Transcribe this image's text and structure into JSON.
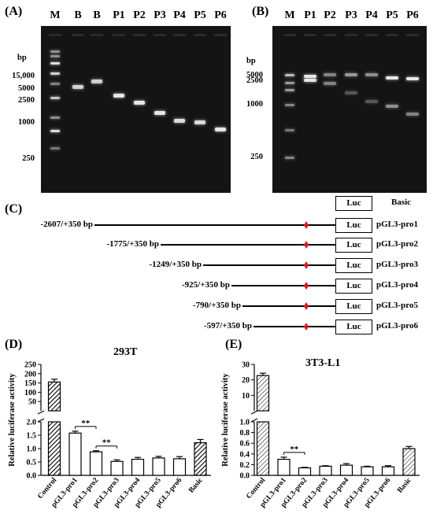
{
  "panelA": {
    "label": "(A)",
    "lanes": [
      "M",
      "B",
      "B",
      "P1",
      "P2",
      "P3",
      "P4",
      "P5",
      "P6"
    ],
    "bp_title": "bp",
    "markers": [
      "15,000",
      "5000",
      "2500",
      "1000",
      "250"
    ]
  },
  "panelB": {
    "label": "(B)",
    "lanes": [
      "M",
      "P1",
      "P2",
      "P3",
      "P4",
      "P5",
      "P6"
    ],
    "bp_title": "bp",
    "markers": [
      "5000",
      "2500",
      "1000",
      "250"
    ]
  },
  "panelC": {
    "label": "(C)",
    "luc": "Luc",
    "basic_label": "Basic",
    "constructs": [
      {
        "range": "-2607/+350 bp",
        "name": "pGL3-pro1"
      },
      {
        "range": "-1775/+350 bp",
        "name": "pGL3-pro2"
      },
      {
        "range": "-1249/+350 bp",
        "name": "pGL3-pro3"
      },
      {
        "range": "-925/+350 bp",
        "name": "pGL3-pro4"
      },
      {
        "range": "-790/+350 bp",
        "name": "pGL3-pro5"
      },
      {
        "range": "-597/+350 bp",
        "name": "pGL3-pro6"
      }
    ]
  },
  "chart_data": [
    {
      "type": "bar",
      "panel": "(D)",
      "title": "293T",
      "ylabel": "Relative luciferase activity",
      "categories": [
        "Control",
        "pGL3-pro1",
        "pGL3-pro2",
        "pGL3-pro3",
        "pGL3-pro4",
        "pGL3-pro5",
        "pGL3-pro6",
        "Basic"
      ],
      "values": [
        155,
        1.58,
        0.88,
        0.52,
        0.6,
        0.65,
        0.62,
        1.22
      ],
      "errors": [
        15,
        0.07,
        0.04,
        0.06,
        0.07,
        0.06,
        0.08,
        0.12
      ],
      "broken_axis": true,
      "lower_ticks": [
        "0.0",
        "0.5",
        "1.0",
        "1.5",
        "2.0"
      ],
      "upper_ticks": [
        "50",
        "100",
        "150",
        "200",
        "250"
      ],
      "significance": [
        {
          "from": "pGL3-pro1",
          "to": "pGL3-pro2",
          "label": "**"
        },
        {
          "from": "pGL3-pro2",
          "to": "pGL3-pro3",
          "label": "**"
        }
      ]
    },
    {
      "type": "bar",
      "panel": "(E)",
      "title": "3T3-L1",
      "ylabel": "Relative luciferase activity",
      "categories": [
        "Control",
        "pGL3-pro1",
        "pGL3-pro2",
        "pGL3-pro3",
        "pGL3-pro4",
        "pGL3-pro5",
        "pGL3-pro6",
        "Basic"
      ],
      "values": [
        22.8,
        0.3,
        0.14,
        0.17,
        0.19,
        0.16,
        0.16,
        0.5
      ],
      "errors": [
        1.5,
        0.04,
        0.01,
        0.01,
        0.03,
        0.01,
        0.02,
        0.04
      ],
      "broken_axis": true,
      "lower_ticks": [
        "0.0",
        "0.2",
        "0.4",
        "0.6",
        "0.8",
        "1.0"
      ],
      "upper_ticks": [
        "10",
        "20",
        "30"
      ],
      "significance": [
        {
          "from": "pGL3-pro1",
          "to": "pGL3-pro2",
          "label": "**"
        }
      ]
    }
  ]
}
